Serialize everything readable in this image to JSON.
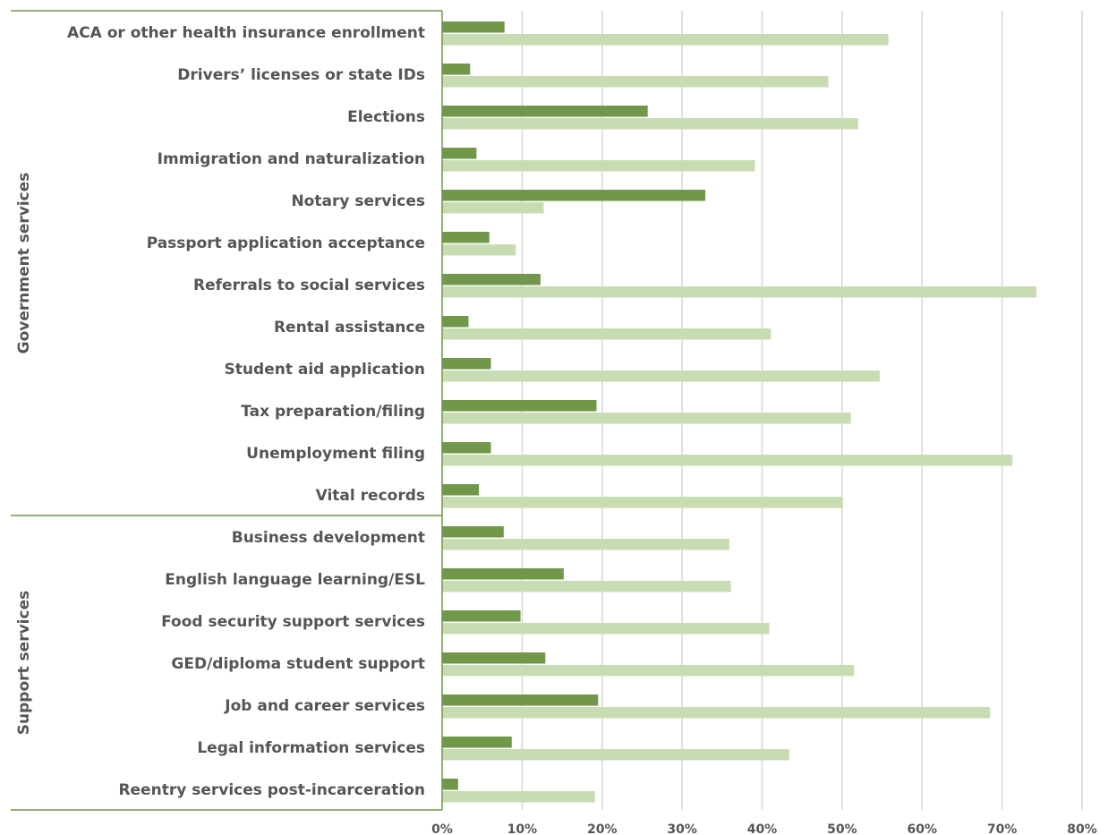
{
  "chart_data": {
    "type": "bar",
    "orientation": "horizontal",
    "title": "",
    "xlabel": "",
    "ylabel": "",
    "xlim": [
      0,
      80
    ],
    "xticks": [
      "0%",
      "10%",
      "20%",
      "30%",
      "40%",
      "50%",
      "60%",
      "70%",
      "80%"
    ],
    "grid": true,
    "legend": "none",
    "series_colors": [
      "#70974a",
      "#c8dcb3"
    ],
    "groups": [
      {
        "name": "Government services",
        "categories": [
          {
            "label": "ACA or other health insurance enrollment",
            "values": [
              7.8,
              55.8
            ]
          },
          {
            "label": "Drivers’ licenses or state IDs",
            "values": [
              3.5,
              48.3
            ]
          },
          {
            "label": "Elections",
            "values": [
              25.7,
              52.0
            ]
          },
          {
            "label": "Immigration and naturalization",
            "values": [
              4.3,
              39.1
            ]
          },
          {
            "label": "Notary services",
            "values": [
              32.9,
              12.7
            ]
          },
          {
            "label": "Passport application acceptance",
            "values": [
              5.9,
              9.2
            ]
          },
          {
            "label": "Referrals to social services",
            "values": [
              12.3,
              74.3
            ]
          },
          {
            "label": "Rental assistance",
            "values": [
              3.3,
              41.1
            ]
          },
          {
            "label": "Student aid application",
            "values": [
              6.1,
              54.7
            ]
          },
          {
            "label": "Tax preparation/filing",
            "values": [
              19.3,
              51.1
            ]
          },
          {
            "label": "Unemployment filing",
            "values": [
              6.1,
              71.3
            ]
          },
          {
            "label": "Vital records",
            "values": [
              4.6,
              50.1
            ]
          }
        ]
      },
      {
        "name": "Support services",
        "categories": [
          {
            "label": "Business development",
            "values": [
              7.7,
              35.9
            ]
          },
          {
            "label": "English language learning/ESL",
            "values": [
              15.2,
              36.1
            ]
          },
          {
            "label": "Food security support services",
            "values": [
              9.8,
              40.9
            ]
          },
          {
            "label": "GED/diploma student support",
            "values": [
              12.9,
              51.5
            ]
          },
          {
            "label": "Job and career services",
            "values": [
              19.5,
              68.5
            ]
          },
          {
            "label": "Legal information services",
            "values": [
              8.7,
              43.4
            ]
          },
          {
            "label": "Reentry services post-incarceration",
            "values": [
              2.0,
              19.1
            ]
          }
        ]
      }
    ]
  }
}
